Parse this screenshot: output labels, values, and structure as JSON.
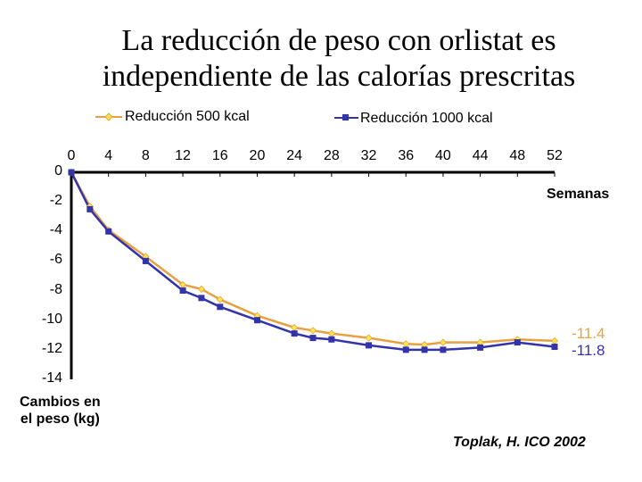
{
  "chart_data": {
    "type": "line",
    "title_line1": "La reducción de peso con orlistat es",
    "title_line2": "independiente de las calorías prescritas",
    "xlabel": "Semanas",
    "ylabel_line1": "Cambios en",
    "ylabel_line2": "el peso (kg)",
    "xlim": [
      0,
      52
    ],
    "ylim": [
      -14,
      0
    ],
    "x_ticks": [
      "0",
      "4",
      "8",
      "12",
      "16",
      "20",
      "24",
      "28",
      "32",
      "36",
      "40",
      "44",
      "48",
      "52"
    ],
    "y_ticks": [
      "0",
      "-2",
      "-4",
      "-6",
      "-8",
      "-10",
      "-12",
      "-14"
    ],
    "series": [
      {
        "name": "Reducción 500 kcal",
        "color": "#E8A040",
        "marker_color": "#FFE84A",
        "x": [
          0,
          2,
          4,
          8,
          12,
          14,
          16,
          20,
          24,
          26,
          28,
          32,
          36,
          38,
          40,
          44,
          48,
          52
        ],
        "y": [
          0,
          -2.3,
          -3.9,
          -5.7,
          -7.6,
          -7.9,
          -8.6,
          -9.7,
          -10.5,
          -10.7,
          -10.9,
          -11.2,
          -11.6,
          -11.65,
          -11.5,
          -11.5,
          -11.3,
          -11.4
        ],
        "end_label": "-11.4"
      },
      {
        "name": "Reducción 1000 kcal",
        "color": "#3333AA",
        "marker_color": "#3333AA",
        "x": [
          0,
          2,
          4,
          8,
          12,
          14,
          16,
          20,
          24,
          26,
          28,
          32,
          36,
          38,
          40,
          44,
          48,
          52
        ],
        "y": [
          0,
          -2.5,
          -4.0,
          -6.0,
          -8.0,
          -8.5,
          -9.1,
          -10.0,
          -10.9,
          -11.2,
          -11.3,
          -11.7,
          -12.0,
          -12.0,
          -12.0,
          -11.85,
          -11.5,
          -11.8
        ],
        "end_label": "-11.8"
      }
    ],
    "source": "Toplak, H. ICO 2002"
  }
}
